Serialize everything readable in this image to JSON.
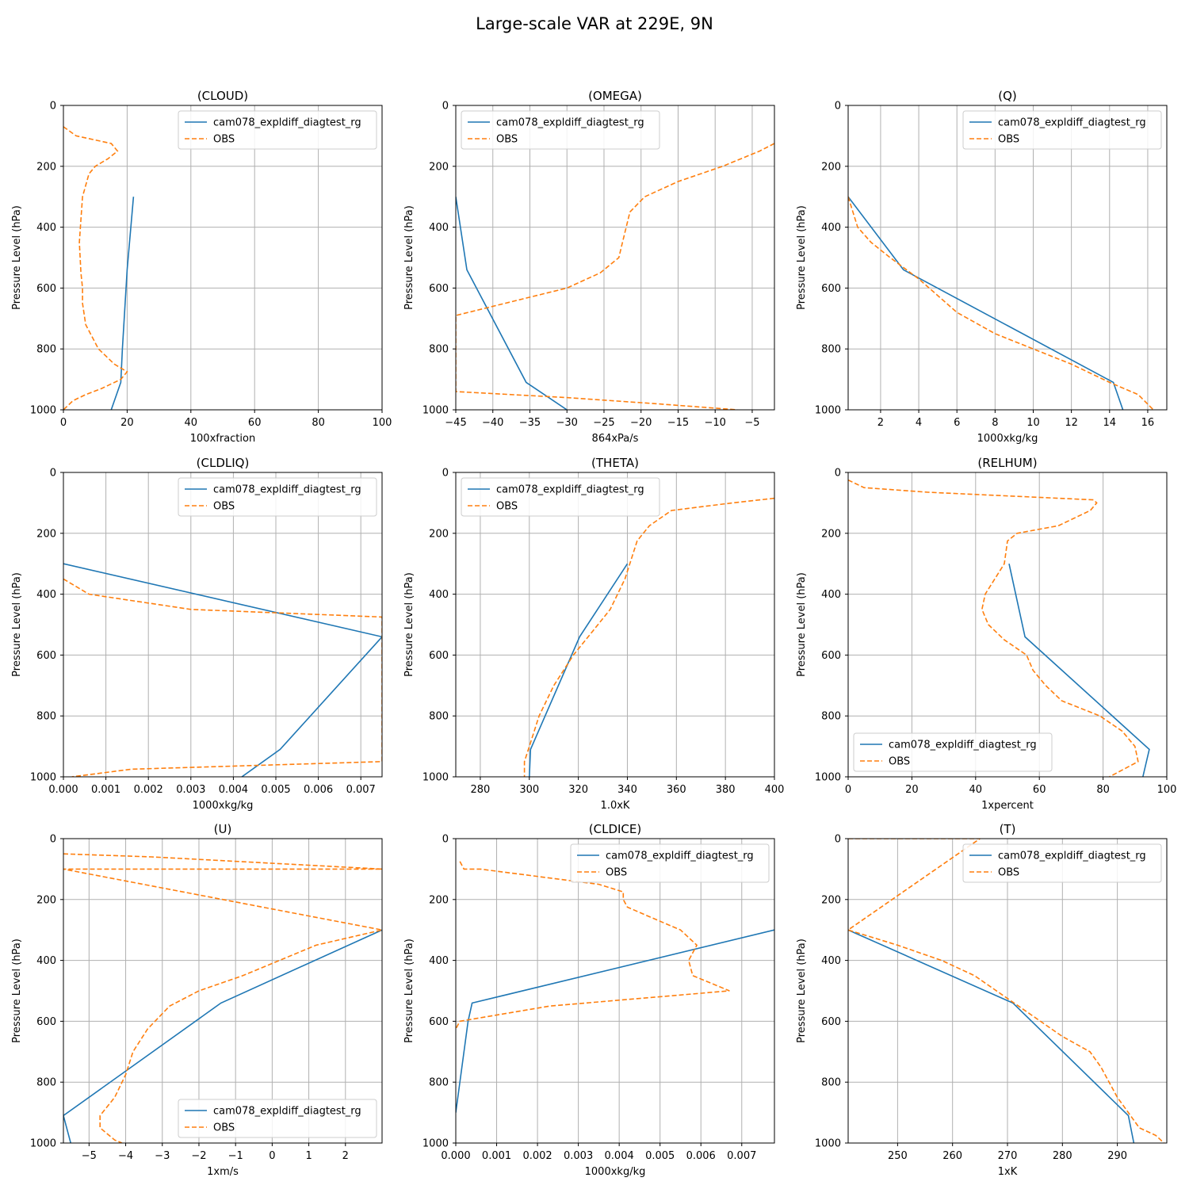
{
  "figure": {
    "title": "Large-scale VAR at 229E, 9N"
  },
  "colors": {
    "model": "#1f77b4",
    "obs": "#ff7f0e",
    "grid": "#b0b0b0"
  },
  "chart_data": [
    {
      "type": "line",
      "title": "(CLOUD)",
      "xlabel": "100xfraction",
      "ylabel": "Pressure Level (hPa)",
      "xlim": [
        0,
        100
      ],
      "ylim": [
        1000,
        0
      ],
      "xticks": [
        0,
        20,
        40,
        60,
        80,
        100
      ],
      "yticks": [
        0,
        200,
        400,
        600,
        800,
        1000
      ],
      "grid": true,
      "legend": "upper right",
      "series": [
        {
          "name": "cam078_expldiff_diagtest_rg",
          "style": "solid",
          "x": [
            22,
            20,
            18.5,
            18,
            15
          ],
          "y": [
            300,
            540,
            800,
            910,
            1000
          ]
        },
        {
          "name": "OBS",
          "style": "dashed",
          "x": [
            0,
            4,
            15,
            17,
            14,
            10,
            8,
            6,
            5,
            5.5,
            6,
            6,
            7,
            11,
            16,
            20,
            18,
            12,
            7,
            3,
            0
          ],
          "y": [
            70,
            100,
            125,
            150,
            175,
            200,
            225,
            300,
            450,
            550,
            600,
            650,
            720,
            800,
            850,
            875,
            900,
            930,
            950,
            970,
            1000
          ]
        }
      ]
    },
    {
      "type": "line",
      "title": "(OMEGA)",
      "xlabel": "864xPa/s",
      "ylabel": "Pressure Level (hPa)",
      "xlim": [
        -45,
        -2
      ],
      "ylim": [
        1000,
        0
      ],
      "xticks": [
        -45,
        -40,
        -35,
        -30,
        -25,
        -20,
        -15,
        -10,
        -5
      ],
      "yticks": [
        0,
        200,
        400,
        600,
        800,
        1000
      ],
      "grid": true,
      "legend": "upper left",
      "series": [
        {
          "name": "cam078_expldiff_diagtest_rg",
          "style": "solid",
          "x": [
            -45,
            -43.5,
            -35.5,
            -30
          ],
          "y": [
            300,
            540,
            910,
            1000
          ]
        },
        {
          "name": "OBS",
          "style": "dashed",
          "x": [
            -2,
            -4,
            -9,
            -15,
            -19.5,
            -21.5,
            -22,
            -22.5,
            -23,
            -25.5,
            -30,
            -35,
            -45,
            -45,
            -30,
            -18,
            -7
          ],
          "y": [
            125,
            150,
            200,
            250,
            300,
            350,
            400,
            450,
            500,
            550,
            600,
            630,
            690,
            940,
            960,
            980,
            1000
          ]
        }
      ]
    },
    {
      "type": "line",
      "title": "(Q)",
      "xlabel": "1000xkg/kg",
      "ylabel": "Pressure Level (hPa)",
      "xlim": [
        0.3,
        17
      ],
      "ylim": [
        1000,
        0
      ],
      "xticks": [
        2,
        4,
        6,
        8,
        10,
        12,
        14,
        16
      ],
      "yticks": [
        0,
        200,
        400,
        600,
        800,
        1000
      ],
      "grid": true,
      "legend": "upper right",
      "series": [
        {
          "name": "cam078_expldiff_diagtest_rg",
          "style": "solid",
          "x": [
            0.3,
            3.2,
            14.2,
            14.7
          ],
          "y": [
            300,
            540,
            910,
            1000
          ]
        },
        {
          "name": "OBS",
          "style": "dashed",
          "x": [
            0.3,
            0.8,
            1.5,
            2.5,
            4,
            6,
            8,
            10,
            12,
            14,
            15.5,
            16.3
          ],
          "y": [
            300,
            400,
            450,
            500,
            570,
            680,
            750,
            800,
            850,
            910,
            950,
            1000
          ]
        }
      ]
    },
    {
      "type": "line",
      "title": "(CLDLIQ)",
      "xlabel": "1000xkg/kg",
      "ylabel": "Pressure Level (hPa)",
      "xlim": [
        0,
        0.0075
      ],
      "ylim": [
        1000,
        0
      ],
      "xticks": [
        0.0,
        0.001,
        0.002,
        0.003,
        0.004,
        0.005,
        0.006,
        0.007
      ],
      "xtick_labels": [
        "0.000",
        "0.001",
        "0.002",
        "0.003",
        "0.004",
        "0.005",
        "0.006",
        "0.007"
      ],
      "yticks": [
        0,
        200,
        400,
        600,
        800,
        1000
      ],
      "grid": true,
      "legend": "upper right",
      "series": [
        {
          "name": "cam078_expldiff_diagtest_rg",
          "style": "solid",
          "x": [
            0,
            0.0075,
            0.0051,
            0.0042
          ],
          "y": [
            300,
            540,
            910,
            1000
          ]
        },
        {
          "name": "OBS",
          "style": "dashed",
          "x": [
            0,
            0.0006,
            0.003,
            0.0075,
            0.0075,
            0.0016,
            0.0002
          ],
          "y": [
            350,
            400,
            450,
            475,
            950,
            975,
            1000
          ]
        }
      ]
    },
    {
      "type": "line",
      "title": "(THETA)",
      "xlabel": "1.0xK",
      "ylabel": "Pressure Level (hPa)",
      "xlim": [
        270,
        400
      ],
      "ylim": [
        1000,
        0
      ],
      "xticks": [
        280,
        300,
        320,
        340,
        360,
        380,
        400
      ],
      "yticks": [
        0,
        200,
        400,
        600,
        800,
        1000
      ],
      "grid": true,
      "legend": "upper left",
      "series": [
        {
          "name": "cam078_expldiff_diagtest_rg",
          "style": "solid",
          "x": [
            340,
            320.5,
            300.5,
            300
          ],
          "y": [
            300,
            540,
            910,
            1000
          ]
        },
        {
          "name": "OBS",
          "style": "dashed",
          "x": [
            400,
            383,
            358,
            349,
            344,
            339,
            333,
            326,
            318,
            310,
            304,
            300,
            298,
            298
          ],
          "y": [
            85,
            100,
            125,
            175,
            225,
            350,
            450,
            520,
            600,
            700,
            800,
            900,
            950,
            1000
          ]
        }
      ]
    },
    {
      "type": "line",
      "title": "(RELHUM)",
      "xlabel": "1xpercent",
      "ylabel": "Pressure Level (hPa)",
      "xlim": [
        0,
        100
      ],
      "ylim": [
        1000,
        0
      ],
      "xticks": [
        0,
        20,
        40,
        60,
        80,
        100
      ],
      "yticks": [
        0,
        200,
        400,
        600,
        800,
        1000
      ],
      "grid": true,
      "legend": "lower left",
      "series": [
        {
          "name": "cam078_expldiff_diagtest_rg",
          "style": "solid",
          "x": [
            50.5,
            55.5,
            94.5,
            92.5
          ],
          "y": [
            300,
            540,
            910,
            1000
          ]
        },
        {
          "name": "OBS",
          "style": "dashed",
          "x": [
            0,
            5,
            25,
            77,
            78,
            76,
            66,
            53,
            50,
            49,
            43,
            42,
            44,
            49,
            56,
            58,
            62,
            67,
            79,
            86,
            90,
            91,
            82
          ],
          "y": [
            25,
            50,
            65,
            90,
            100,
            125,
            175,
            200,
            225,
            300,
            400,
            450,
            500,
            550,
            600,
            650,
            700,
            750,
            800,
            850,
            900,
            950,
            1000
          ]
        }
      ]
    },
    {
      "type": "line",
      "title": "(U)",
      "xlabel": "1xm/s",
      "ylabel": "Pressure Level (hPa)",
      "xlim": [
        -5.7,
        3
      ],
      "ylim": [
        1000,
        0
      ],
      "xticks": [
        -5,
        -4,
        -3,
        -2,
        -1,
        0,
        1,
        2
      ],
      "yticks": [
        0,
        200,
        400,
        600,
        800,
        1000
      ],
      "grid": true,
      "legend": "lower right",
      "series": [
        {
          "name": "cam078_expldiff_diagtest_rg",
          "style": "solid",
          "x": [
            3,
            -1.4,
            -5.7,
            -5.5
          ],
          "y": [
            300,
            540,
            910,
            1000
          ]
        },
        {
          "name": "OBS",
          "style": "dashed",
          "x": [
            -5.7,
            -3.3,
            3,
            -5.7,
            3,
            1.2,
            0.2,
            -0.8,
            -2.0,
            -2.8,
            -3.4,
            -3.8,
            -4.0,
            -4.3,
            -4.7,
            -4.7,
            -4.3,
            -4.1
          ],
          "y": [
            50,
            60,
            100,
            100,
            300,
            350,
            400,
            450,
            500,
            550,
            625,
            700,
            775,
            850,
            910,
            950,
            990,
            1000
          ]
        }
      ]
    },
    {
      "type": "line",
      "title": "(CLDICE)",
      "xlabel": "1000xkg/kg",
      "ylabel": "Pressure Level (hPa)",
      "xlim": [
        0,
        0.0078
      ],
      "ylim": [
        1000,
        0
      ],
      "xticks": [
        0.0,
        0.001,
        0.002,
        0.003,
        0.004,
        0.005,
        0.006,
        0.007
      ],
      "xtick_labels": [
        "0.000",
        "0.001",
        "0.002",
        "0.003",
        "0.004",
        "0.005",
        "0.006",
        "0.007"
      ],
      "yticks": [
        0,
        200,
        400,
        600,
        800,
        1000
      ],
      "grid": true,
      "legend": "upper right",
      "series": [
        {
          "name": "cam078_expldiff_diagtest_rg",
          "style": "solid",
          "x": [
            0.0078,
            0.0004,
            0.0003,
            0.0
          ],
          "y": [
            300,
            540,
            600,
            900
          ]
        },
        {
          "name": "OBS",
          "style": "dashed",
          "x": [
            0.0001,
            0.0002,
            0.0006,
            0.0035,
            0.0041,
            0.0041,
            0.0042,
            0.0048,
            0.0055,
            0.0059,
            0.0057,
            0.0058,
            0.0067,
            0.0023,
            0.0001,
            0.0
          ],
          "y": [
            75,
            100,
            100,
            150,
            175,
            200,
            225,
            260,
            300,
            350,
            400,
            450,
            500,
            550,
            600,
            625
          ]
        }
      ]
    },
    {
      "type": "line",
      "title": "(T)",
      "xlabel": "1xK",
      "ylabel": "Pressure Level (hPa)",
      "xlim": [
        241,
        299
      ],
      "ylim": [
        1000,
        0
      ],
      "xticks": [
        250,
        260,
        270,
        280,
        290
      ],
      "yticks": [
        0,
        200,
        400,
        600,
        800,
        1000
      ],
      "grid": true,
      "legend": "upper right",
      "series": [
        {
          "name": "cam078_expldiff_diagtest_rg",
          "style": "solid",
          "x": [
            241,
            271,
            292,
            293
          ],
          "y": [
            300,
            540,
            910,
            1000
          ]
        },
        {
          "name": "OBS",
          "style": "dashed",
          "x": [
            241,
            265,
            241,
            250,
            258,
            264,
            268,
            272,
            276,
            280,
            285,
            287,
            288.5,
            290,
            292,
            294,
            297,
            298.5
          ],
          "y": [
            0,
            0,
            300,
            350,
            400,
            450,
            500,
            550,
            600,
            650,
            700,
            750,
            800,
            850,
            900,
            950,
            975,
            1000
          ]
        }
      ]
    }
  ]
}
